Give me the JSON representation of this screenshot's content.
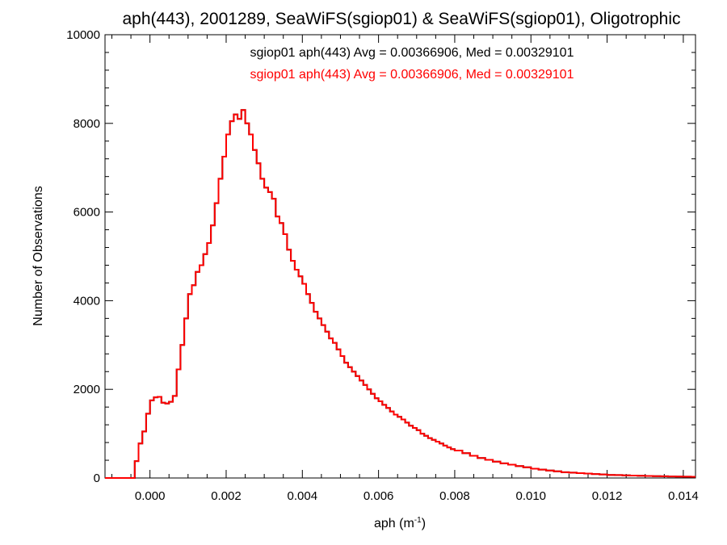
{
  "chart_data": {
    "type": "histogram-step",
    "title": "aph(443), 2001289, SeaWiFS(sgiop01) & SeaWiFS(sgiop01), Oligotrophic",
    "xlabel": "aph (m",
    "xlabel_sup": "-1",
    "xlabel_suffix": ")",
    "ylabel": "Number of Observations",
    "xlim": [
      -0.00118,
      0.01432
    ],
    "ylim": [
      0,
      10000
    ],
    "x_ticks": [
      0.0,
      0.002,
      0.004,
      0.006,
      0.008,
      0.01,
      0.012,
      0.014
    ],
    "x_tick_labels": [
      "0.000",
      "0.002",
      "0.004",
      "0.006",
      "0.008",
      "0.010",
      "0.012",
      "0.014"
    ],
    "y_ticks": [
      0,
      2000,
      4000,
      6000,
      8000,
      10000
    ],
    "y_tick_labels": [
      "0",
      "2000",
      "4000",
      "6000",
      "8000",
      "10000"
    ],
    "annotations": [
      {
        "text": "sgiop01 aph(443) Avg = 0.00366906, Med = 0.00329101",
        "color": "#000000"
      },
      {
        "text": "sgiop01 aph(443) Avg = 0.00366906, Med = 0.00329101",
        "color": "#ff0000"
      }
    ],
    "series": [
      {
        "color": "#000000",
        "x": [
          -0.0012,
          -0.0008,
          -0.0005,
          -0.0004,
          -0.0003,
          -0.0002,
          -0.0001,
          0.0,
          0.0001,
          0.0002,
          0.0003,
          0.0004,
          0.0005,
          0.0006,
          0.0007,
          0.0008,
          0.0009,
          0.001,
          0.0011,
          0.0012,
          0.0013,
          0.0014,
          0.0015,
          0.0016,
          0.0017,
          0.0018,
          0.0019,
          0.002,
          0.0021,
          0.0022,
          0.0023,
          0.0024,
          0.0025,
          0.0026,
          0.0027,
          0.0028,
          0.0029,
          0.003,
          0.0031,
          0.0032,
          0.0033,
          0.0034,
          0.0035,
          0.0036,
          0.0037,
          0.0038,
          0.0039,
          0.004,
          0.0041,
          0.0042,
          0.0043,
          0.0044,
          0.0045,
          0.0046,
          0.0047,
          0.0048,
          0.0049,
          0.005,
          0.0051,
          0.0052,
          0.0053,
          0.0054,
          0.0055,
          0.0056,
          0.0057,
          0.0058,
          0.0059,
          0.006,
          0.0061,
          0.0062,
          0.0063,
          0.0064,
          0.0065,
          0.0066,
          0.0067,
          0.0068,
          0.0069,
          0.007,
          0.0071,
          0.0072,
          0.0073,
          0.0074,
          0.0075,
          0.0076,
          0.0077,
          0.0078,
          0.0079,
          0.008,
          0.0082,
          0.0084,
          0.0086,
          0.0088,
          0.009,
          0.0092,
          0.0094,
          0.0096,
          0.0098,
          0.01,
          0.0102,
          0.0104,
          0.0106,
          0.0108,
          0.011,
          0.0112,
          0.0114,
          0.0116,
          0.0118,
          0.012,
          0.0122,
          0.0124,
          0.0126,
          0.0128,
          0.013,
          0.0132,
          0.0134,
          0.0136,
          0.0138,
          0.014,
          0.0142
        ],
        "y": [
          0,
          0,
          0,
          380,
          780,
          1050,
          1450,
          1750,
          1820,
          1830,
          1700,
          1680,
          1720,
          1850,
          2450,
          3000,
          3600,
          4150,
          4350,
          4650,
          4800,
          5050,
          5300,
          5700,
          6200,
          6750,
          7250,
          7750,
          8050,
          8200,
          8100,
          8300,
          8000,
          7750,
          7400,
          7100,
          6750,
          6550,
          6450,
          6300,
          5900,
          5750,
          5500,
          5150,
          4900,
          4700,
          4550,
          4380,
          4150,
          3950,
          3750,
          3600,
          3450,
          3300,
          3150,
          3050,
          2900,
          2750,
          2600,
          2500,
          2400,
          2300,
          2200,
          2100,
          2000,
          1900,
          1800,
          1730,
          1650,
          1580,
          1500,
          1430,
          1380,
          1320,
          1250,
          1180,
          1130,
          1080,
          1000,
          950,
          900,
          860,
          820,
          780,
          730,
          690,
          650,
          620,
          560,
          500,
          450,
          410,
          370,
          330,
          300,
          270,
          240,
          210,
          190,
          170,
          150,
          130,
          120,
          110,
          100,
          90,
          80,
          70,
          65,
          60,
          55,
          50,
          45,
          40,
          38,
          35,
          32,
          30,
          28
        ]
      },
      {
        "color": "#ff0000",
        "x": [
          -0.0012,
          -0.0008,
          -0.0005,
          -0.0004,
          -0.0003,
          -0.0002,
          -0.0001,
          0.0,
          0.0001,
          0.0002,
          0.0003,
          0.0004,
          0.0005,
          0.0006,
          0.0007,
          0.0008,
          0.0009,
          0.001,
          0.0011,
          0.0012,
          0.0013,
          0.0014,
          0.0015,
          0.0016,
          0.0017,
          0.0018,
          0.0019,
          0.002,
          0.0021,
          0.0022,
          0.0023,
          0.0024,
          0.0025,
          0.0026,
          0.0027,
          0.0028,
          0.0029,
          0.003,
          0.0031,
          0.0032,
          0.0033,
          0.0034,
          0.0035,
          0.0036,
          0.0037,
          0.0038,
          0.0039,
          0.004,
          0.0041,
          0.0042,
          0.0043,
          0.0044,
          0.0045,
          0.0046,
          0.0047,
          0.0048,
          0.0049,
          0.005,
          0.0051,
          0.0052,
          0.0053,
          0.0054,
          0.0055,
          0.0056,
          0.0057,
          0.0058,
          0.0059,
          0.006,
          0.0061,
          0.0062,
          0.0063,
          0.0064,
          0.0065,
          0.0066,
          0.0067,
          0.0068,
          0.0069,
          0.007,
          0.0071,
          0.0072,
          0.0073,
          0.0074,
          0.0075,
          0.0076,
          0.0077,
          0.0078,
          0.0079,
          0.008,
          0.0082,
          0.0084,
          0.0086,
          0.0088,
          0.009,
          0.0092,
          0.0094,
          0.0096,
          0.0098,
          0.01,
          0.0102,
          0.0104,
          0.0106,
          0.0108,
          0.011,
          0.0112,
          0.0114,
          0.0116,
          0.0118,
          0.012,
          0.0122,
          0.0124,
          0.0126,
          0.0128,
          0.013,
          0.0132,
          0.0134,
          0.0136,
          0.0138,
          0.014,
          0.0142
        ],
        "y": [
          0,
          0,
          0,
          380,
          780,
          1050,
          1450,
          1750,
          1820,
          1830,
          1700,
          1680,
          1720,
          1850,
          2450,
          3000,
          3600,
          4150,
          4350,
          4650,
          4800,
          5050,
          5300,
          5700,
          6200,
          6750,
          7250,
          7750,
          8050,
          8200,
          8100,
          8300,
          8000,
          7750,
          7400,
          7100,
          6750,
          6550,
          6450,
          6300,
          5900,
          5750,
          5500,
          5150,
          4900,
          4700,
          4550,
          4380,
          4150,
          3950,
          3750,
          3600,
          3450,
          3300,
          3150,
          3050,
          2900,
          2750,
          2600,
          2500,
          2400,
          2300,
          2200,
          2100,
          2000,
          1900,
          1800,
          1730,
          1650,
          1580,
          1500,
          1430,
          1380,
          1320,
          1250,
          1180,
          1130,
          1080,
          1000,
          950,
          900,
          860,
          820,
          780,
          730,
          690,
          650,
          620,
          560,
          500,
          450,
          410,
          370,
          330,
          300,
          270,
          240,
          210,
          190,
          170,
          150,
          130,
          120,
          110,
          100,
          90,
          80,
          70,
          65,
          60,
          55,
          50,
          45,
          40,
          38,
          35,
          32,
          30,
          28
        ]
      }
    ]
  }
}
